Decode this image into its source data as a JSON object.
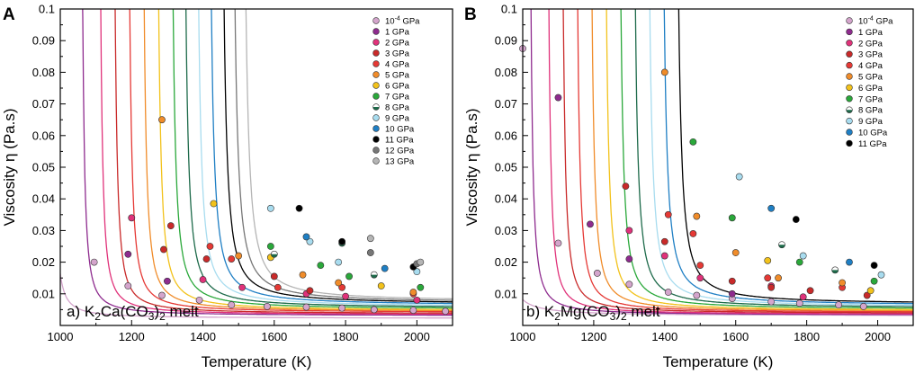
{
  "chart_data": [
    {
      "type": "scatter",
      "panel_letter": "A",
      "melt_label": {
        "prefix": "a) K",
        "sub1": "2",
        "mid": "Ca(CO",
        "sub2": "3",
        "mid2": ")",
        "sub3": "2",
        "suffix": " melt"
      },
      "xlabel": "Temperature (K)",
      "ylabel": "Viscosity η (Pa.s)",
      "xlim": [
        1000,
        2100
      ],
      "ylim": [
        0,
        0.1
      ],
      "xticks": [
        "1000",
        "1200",
        "1400",
        "1600",
        "1800",
        "2000"
      ],
      "yticks": [
        "0.01",
        "0.02",
        "0.03",
        "0.04",
        "0.05",
        "0.06",
        "0.07",
        "0.08",
        "0.09",
        "0.1"
      ],
      "legend_position": "top-right",
      "series": [
        {
          "name": "10",
          "name_sup": "-4",
          "name_unit": " GPa",
          "color": "#d4a5cc",
          "curve": {
            "A": 0.0022,
            "T0": 960
          },
          "points": [
            [
              1095,
              0.02
            ],
            [
              1190,
              0.0125
            ],
            [
              1285,
              0.0095
            ],
            [
              1390,
              0.008
            ],
            [
              1480,
              0.0065
            ],
            [
              1580,
              0.006
            ],
            [
              1690,
              0.0058
            ],
            [
              1790,
              0.0055
            ],
            [
              1880,
              0.005
            ],
            [
              1990,
              0.0048
            ],
            [
              2080,
              0.0045
            ]
          ]
        },
        {
          "name": "1 GPa",
          "color": "#8e2b8e",
          "curve": {
            "A": 0.003,
            "T0": 1040
          },
          "points": [
            [
              1190,
              0.0225
            ],
            [
              1300,
              0.014
            ]
          ]
        },
        {
          "name": "2 GPa",
          "color": "#e0327a",
          "curve": {
            "A": 0.0033,
            "T0": 1090
          },
          "points": [
            [
              1200,
              0.034
            ],
            [
              1400,
              0.0145
            ],
            [
              1510,
              0.012
            ],
            [
              1690,
              0.01
            ],
            [
              1800,
              0.0092
            ],
            [
              2000,
              0.008
            ]
          ]
        },
        {
          "name": "3 GPa",
          "color": "#c92a2a",
          "curve": {
            "A": 0.0036,
            "T0": 1130
          },
          "points": [
            [
              1290,
              0.024
            ],
            [
              1310,
              0.0315
            ],
            [
              1410,
              0.021
            ],
            [
              1600,
              0.0155
            ],
            [
              1700,
              0.011
            ]
          ]
        },
        {
          "name": "4 GPa",
          "color": "#e53935",
          "curve": {
            "A": 0.004,
            "T0": 1170
          },
          "points": [
            [
              1420,
              0.025
            ],
            [
              1480,
              0.021
            ],
            [
              1610,
              0.012
            ],
            [
              1790,
              0.012
            ],
            [
              1990,
              0.01
            ]
          ]
        },
        {
          "name": "5 GPa",
          "color": "#f08c2a",
          "curve": {
            "A": 0.0043,
            "T0": 1210
          },
          "points": [
            [
              1285,
              0.065
            ],
            [
              1500,
              0.022
            ],
            [
              1680,
              0.016
            ],
            [
              1780,
              0.0135
            ],
            [
              1990,
              0.0105
            ]
          ]
        },
        {
          "name": "6 GPa",
          "color": "#f2c21b",
          "curve": {
            "A": 0.0046,
            "T0": 1250
          },
          "points": [
            [
              1430,
              0.0385
            ],
            [
              1590,
              0.0215
            ],
            [
              1900,
              0.0125
            ]
          ]
        },
        {
          "name": "7 GPa",
          "color": "#2aa83a",
          "curve": {
            "A": 0.005,
            "T0": 1290
          },
          "points": [
            [
              1590,
              0.025
            ],
            [
              1730,
              0.019
            ],
            [
              1810,
              0.0155
            ],
            [
              2010,
              0.012
            ]
          ]
        },
        {
          "name": "8 GPa",
          "color": "#1d6a4a",
          "curve": {
            "A": 0.0054,
            "T0": 1325
          },
          "points": [
            [
              1600,
              0.0225
            ],
            [
              1790,
              0.026
            ],
            [
              1880,
              0.016
            ]
          ]
        },
        {
          "name": "9 GPa",
          "color": "#a8dcef",
          "curve": {
            "A": 0.0058,
            "T0": 1360
          },
          "points": [
            [
              1590,
              0.037
            ],
            [
              1700,
              0.0265
            ],
            [
              1780,
              0.02
            ],
            [
              2000,
              0.017
            ]
          ]
        },
        {
          "name": "10 GPa",
          "color": "#1f7fc4",
          "curve": {
            "A": 0.0062,
            "T0": 1395
          },
          "points": [
            [
              1690,
              0.028
            ],
            [
              1910,
              0.018
            ]
          ]
        },
        {
          "name": "11 GPa",
          "color": "#000000",
          "curve": {
            "A": 0.0066,
            "T0": 1430
          },
          "points": [
            [
              1670,
              0.037
            ],
            [
              1790,
              0.0265
            ],
            [
              1990,
              0.0185
            ]
          ]
        },
        {
          "name": "12 GPa",
          "color": "#777777",
          "curve": {
            "A": 0.007,
            "T0": 1460
          },
          "points": [
            [
              1870,
              0.023
            ],
            [
              2000,
              0.0195
            ]
          ]
        },
        {
          "name": "13 GPa",
          "color": "#b5b5b5",
          "curve": {
            "A": 0.0074,
            "T0": 1490
          },
          "points": [
            [
              1870,
              0.0275
            ],
            [
              2010,
              0.02
            ]
          ]
        }
      ]
    },
    {
      "type": "scatter",
      "panel_letter": "B",
      "melt_label": {
        "prefix": "b) K",
        "sub1": "2",
        "mid": "Mg(CO",
        "sub2": "3",
        "mid2": ")",
        "sub3": "2",
        "suffix": " melt"
      },
      "xlabel": "Temperature (K)",
      "ylabel": "Viscosity η (Pa.s)",
      "xlim": [
        1000,
        2100
      ],
      "ylim": [
        0,
        0.1
      ],
      "xticks": [
        "1000",
        "1200",
        "1400",
        "1600",
        "1800",
        "2000"
      ],
      "yticks": [
        "0.01",
        "0.02",
        "0.03",
        "0.04",
        "0.05",
        "0.06",
        "0.07",
        "0.08",
        "0.09",
        "0.1"
      ],
      "legend_position": "top-right",
      "series": [
        {
          "name": "10",
          "name_sup": "-4",
          "name_unit": " GPa",
          "color": "#d4a5cc",
          "curve": {
            "A": 0.003,
            "T0": 920
          },
          "points": [
            [
              1000,
              0.0875
            ],
            [
              1100,
              0.026
            ],
            [
              1210,
              0.0165
            ],
            [
              1300,
              0.013
            ],
            [
              1410,
              0.0105
            ],
            [
              1490,
              0.0095
            ],
            [
              1590,
              0.0085
            ],
            [
              1700,
              0.0075
            ],
            [
              1780,
              0.007
            ],
            [
              1890,
              0.0065
            ],
            [
              1960,
              0.006
            ]
          ]
        },
        {
          "name": "1 GPa",
          "color": "#8e2b8e",
          "curve": {
            "A": 0.0032,
            "T0": 1000
          },
          "points": [
            [
              1100,
              0.072
            ],
            [
              1190,
              0.032
            ],
            [
              1300,
              0.021
            ],
            [
              1590,
              0.01
            ]
          ]
        },
        {
          "name": "2 GPa",
          "color": "#e0327a",
          "curve": {
            "A": 0.0034,
            "T0": 1050
          },
          "points": [
            [
              1300,
              0.03
            ],
            [
              1400,
              0.022
            ],
            [
              1500,
              0.015
            ],
            [
              1700,
              0.0125
            ],
            [
              1790,
              0.009
            ]
          ]
        },
        {
          "name": "3 GPa",
          "color": "#c92a2a",
          "curve": {
            "A": 0.0037,
            "T0": 1090
          },
          "points": [
            [
              1290,
              0.044
            ],
            [
              1400,
              0.0265
            ],
            [
              1590,
              0.014
            ],
            [
              1700,
              0.012
            ],
            [
              1810,
              0.011
            ],
            [
              1970,
              0.0095
            ]
          ]
        },
        {
          "name": "4 GPa",
          "color": "#e53935",
          "curve": {
            "A": 0.004,
            "T0": 1130
          },
          "points": [
            [
              1410,
              0.035
            ],
            [
              1480,
              0.029
            ],
            [
              1500,
              0.019
            ],
            [
              1690,
              0.015
            ],
            [
              1900,
              0.012
            ]
          ]
        },
        {
          "name": "5 GPa",
          "color": "#f08c2a",
          "curve": {
            "A": 0.0043,
            "T0": 1170
          },
          "points": [
            [
              1400,
              0.08
            ],
            [
              1490,
              0.0345
            ],
            [
              1600,
              0.023
            ],
            [
              1720,
              0.015
            ],
            [
              1900,
              0.0135
            ]
          ]
        },
        {
          "name": "6 GPa",
          "color": "#f2c21b",
          "curve": {
            "A": 0.0046,
            "T0": 1210
          },
          "points": [
            [
              1690,
              0.0205
            ],
            [
              1980,
              0.011
            ]
          ]
        },
        {
          "name": "7 GPa",
          "color": "#2aa83a",
          "curve": {
            "A": 0.005,
            "T0": 1250
          },
          "points": [
            [
              1480,
              0.058
            ],
            [
              1590,
              0.034
            ],
            [
              1780,
              0.02
            ],
            [
              1990,
              0.014
            ]
          ]
        },
        {
          "name": "8 GPa",
          "color": "#1d6a4a",
          "curve": {
            "A": 0.0054,
            "T0": 1290
          },
          "points": [
            [
              1730,
              0.0255
            ],
            [
              1880,
              0.0175
            ]
          ]
        },
        {
          "name": "9 GPa",
          "color": "#a8dcef",
          "curve": {
            "A": 0.0058,
            "T0": 1330
          },
          "points": [
            [
              1610,
              0.047
            ],
            [
              1790,
              0.022
            ],
            [
              2010,
              0.016
            ]
          ]
        },
        {
          "name": "10 GPa",
          "color": "#1f7fc4",
          "curve": {
            "A": 0.0062,
            "T0": 1370
          },
          "points": [
            [
              1700,
              0.037
            ],
            [
              1920,
              0.02
            ]
          ]
        },
        {
          "name": "11 GPa",
          "color": "#000000",
          "curve": {
            "A": 0.0066,
            "T0": 1410
          },
          "points": [
            [
              1770,
              0.0335
            ],
            [
              1990,
              0.019
            ]
          ]
        }
      ]
    }
  ]
}
